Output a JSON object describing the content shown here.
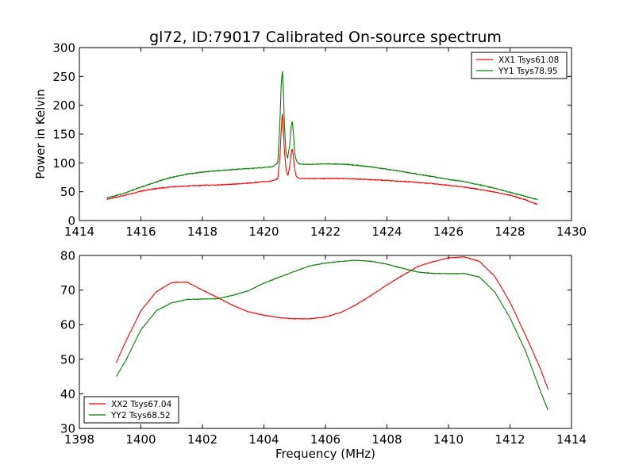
{
  "title": "gl72, ID:79017 Calibrated On-source spectrum",
  "colors": {
    "xx": "#ff0000",
    "yy": "#008000"
  },
  "chart_data": [
    {
      "type": "line",
      "panel": "top",
      "xlabel": "",
      "ylabel": "Power in Kelvin",
      "xlim": [
        1414,
        1430
      ],
      "ylim": [
        0,
        300
      ],
      "xticks": [
        1414,
        1416,
        1418,
        1420,
        1422,
        1424,
        1426,
        1428,
        1430
      ],
      "yticks": [
        0,
        50,
        100,
        150,
        200,
        250,
        300
      ],
      "legend_placement": "top-right",
      "series": [
        {
          "name": "XX1 Tsys61.08",
          "color": "#ff0000",
          "points": [
            [
              1414.9,
              37
            ],
            [
              1415.5,
              44
            ],
            [
              1416.0,
              51
            ],
            [
              1416.5,
              55.5
            ],
            [
              1417.0,
              58.5
            ],
            [
              1417.5,
              60
            ],
            [
              1418.0,
              61
            ],
            [
              1418.5,
              62
            ],
            [
              1419.0,
              63
            ],
            [
              1419.5,
              65
            ],
            [
              1420.0,
              67.5
            ],
            [
              1420.3,
              69
            ],
            [
              1420.45,
              73
            ],
            [
              1420.52,
              110
            ],
            [
              1420.56,
              155
            ],
            [
              1420.6,
              188
            ],
            [
              1420.63,
              160
            ],
            [
              1420.67,
              118
            ],
            [
              1420.72,
              88
            ],
            [
              1420.78,
              78
            ],
            [
              1420.84,
              95
            ],
            [
              1420.88,
              115
            ],
            [
              1420.92,
              126
            ],
            [
              1420.96,
              110
            ],
            [
              1421.0,
              88
            ],
            [
              1421.05,
              77
            ],
            [
              1421.15,
              73
            ],
            [
              1421.5,
              72.5
            ],
            [
              1422.0,
              73
            ],
            [
              1422.5,
              73
            ],
            [
              1423.0,
              72
            ],
            [
              1423.5,
              71
            ],
            [
              1424.0,
              69.5
            ],
            [
              1424.5,
              68
            ],
            [
              1425.0,
              66
            ],
            [
              1425.5,
              64
            ],
            [
              1426.0,
              61
            ],
            [
              1426.5,
              58
            ],
            [
              1427.0,
              54
            ],
            [
              1427.5,
              49.5
            ],
            [
              1428.0,
              44
            ],
            [
              1428.5,
              36
            ],
            [
              1428.9,
              28
            ]
          ]
        },
        {
          "name": "YY1 Tsys78.95",
          "color": "#008000",
          "points": [
            [
              1414.9,
              39
            ],
            [
              1415.5,
              48
            ],
            [
              1416.0,
              58
            ],
            [
              1416.5,
              67
            ],
            [
              1417.0,
              75
            ],
            [
              1417.5,
              80.5
            ],
            [
              1418.0,
              84
            ],
            [
              1418.5,
              86.5
            ],
            [
              1419.0,
              88.5
            ],
            [
              1419.5,
              90
            ],
            [
              1420.0,
              92
            ],
            [
              1420.3,
              93.5
            ],
            [
              1420.45,
              100
            ],
            [
              1420.52,
              170
            ],
            [
              1420.56,
              235
            ],
            [
              1420.6,
              262
            ],
            [
              1420.63,
              232
            ],
            [
              1420.67,
              160
            ],
            [
              1420.72,
              118
            ],
            [
              1420.77,
              108
            ],
            [
              1420.84,
              132
            ],
            [
              1420.88,
              160
            ],
            [
              1420.92,
              174
            ],
            [
              1420.96,
              150
            ],
            [
              1421.0,
              118
            ],
            [
              1421.05,
              104
            ],
            [
              1421.15,
              98
            ],
            [
              1421.5,
              97.5
            ],
            [
              1422.0,
              98.5
            ],
            [
              1422.5,
              98
            ],
            [
              1423.0,
              96
            ],
            [
              1423.5,
              93
            ],
            [
              1424.0,
              89
            ],
            [
              1424.5,
              85
            ],
            [
              1425.0,
              80.5
            ],
            [
              1425.5,
              76
            ],
            [
              1426.0,
              71.5
            ],
            [
              1426.5,
              67.5
            ],
            [
              1427.0,
              62
            ],
            [
              1427.5,
              56
            ],
            [
              1428.0,
              49
            ],
            [
              1428.5,
              42
            ],
            [
              1428.9,
              36
            ]
          ]
        }
      ]
    },
    {
      "type": "line",
      "panel": "bottom",
      "xlabel": "Frequency (MHz)",
      "ylabel": "",
      "xlim": [
        1398,
        1414
      ],
      "ylim": [
        30,
        80
      ],
      "xticks": [
        1398,
        1400,
        1402,
        1404,
        1406,
        1408,
        1410,
        1412,
        1414
      ],
      "yticks": [
        30,
        40,
        50,
        60,
        70,
        80
      ],
      "legend_placement": "bottom-left",
      "series": [
        {
          "name": "XX2 Tsys67.04",
          "color": "#ff0000",
          "points": [
            [
              1399.2,
              49
            ],
            [
              1399.5,
              55
            ],
            [
              1400.0,
              64
            ],
            [
              1400.5,
              69.5
            ],
            [
              1401.0,
              72.2
            ],
            [
              1401.5,
              72.3
            ],
            [
              1402.0,
              70
            ],
            [
              1402.5,
              67.8
            ],
            [
              1403.0,
              65.5
            ],
            [
              1403.5,
              63.7
            ],
            [
              1404.0,
              62.7
            ],
            [
              1404.5,
              62
            ],
            [
              1405.0,
              61.7
            ],
            [
              1405.5,
              61.7
            ],
            [
              1406.0,
              62.2
            ],
            [
              1406.5,
              63.5
            ],
            [
              1407.0,
              65.8
            ],
            [
              1407.5,
              68.5
            ],
            [
              1408.0,
              71.5
            ],
            [
              1408.5,
              74.2
            ],
            [
              1409.0,
              76.8
            ],
            [
              1409.5,
              78.2
            ],
            [
              1410.0,
              79.3
            ],
            [
              1410.5,
              79.6
            ],
            [
              1411.0,
              78.3
            ],
            [
              1411.5,
              74
            ],
            [
              1412.0,
              66.5
            ],
            [
              1412.5,
              57
            ],
            [
              1413.0,
              47
            ],
            [
              1413.25,
              41
            ]
          ]
        },
        {
          "name": "YY2 Tsys68.52",
          "color": "#008000",
          "points": [
            [
              1399.2,
              45
            ],
            [
              1399.5,
              49.5
            ],
            [
              1400.0,
              58.5
            ],
            [
              1400.5,
              64
            ],
            [
              1401.0,
              66.3
            ],
            [
              1401.5,
              67.3
            ],
            [
              1402.0,
              67.4
            ],
            [
              1402.5,
              67.5
            ],
            [
              1403.0,
              68.5
            ],
            [
              1403.5,
              69.8
            ],
            [
              1404.0,
              72
            ],
            [
              1404.5,
              73.7
            ],
            [
              1405.0,
              75.4
            ],
            [
              1405.5,
              77
            ],
            [
              1406.0,
              77.8
            ],
            [
              1406.5,
              78.3
            ],
            [
              1407.0,
              78.6
            ],
            [
              1407.5,
              78.3
            ],
            [
              1408.0,
              77.5
            ],
            [
              1408.5,
              76.3
            ],
            [
              1409.0,
              75.2
            ],
            [
              1409.5,
              74.8
            ],
            [
              1410.0,
              74.7
            ],
            [
              1410.5,
              74.8
            ],
            [
              1411.0,
              73.8
            ],
            [
              1411.5,
              69.5
            ],
            [
              1412.0,
              62
            ],
            [
              1412.5,
              52.5
            ],
            [
              1413.0,
              40.5
            ],
            [
              1413.25,
              35
            ]
          ]
        }
      ]
    }
  ]
}
